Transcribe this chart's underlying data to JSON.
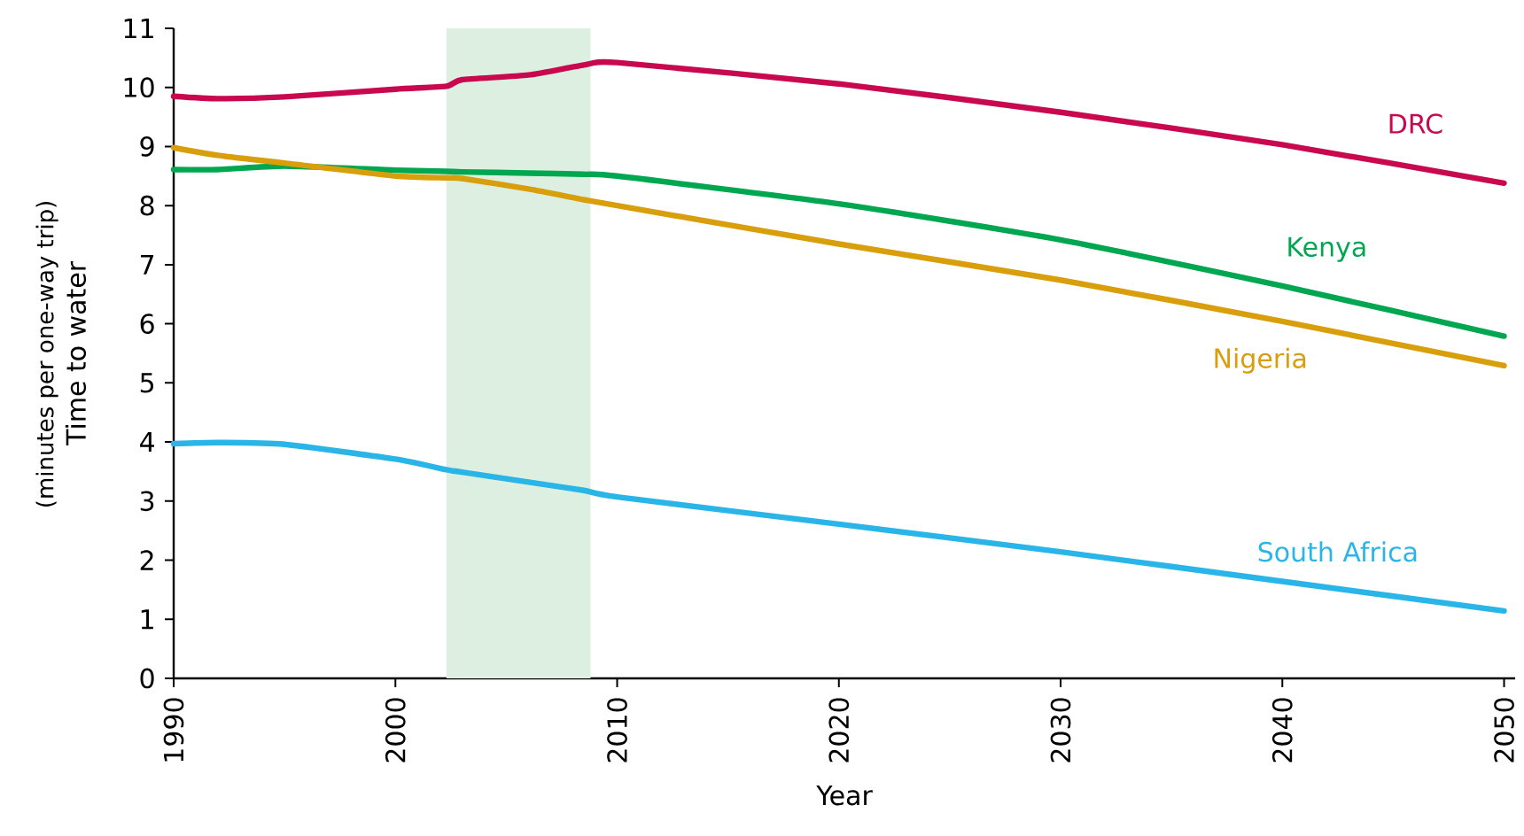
{
  "chart_data": {
    "type": "line",
    "xlabel": "Year",
    "ylabel": "Time to water",
    "annotations": [
      "(minutes per one-way trip)"
    ],
    "xlim": [
      1990,
      2050.5
    ],
    "xticks": [
      1990,
      2000,
      2010,
      2020,
      2030,
      2040,
      2050
    ],
    "ylim": [
      0,
      11
    ],
    "yticks": [
      0,
      1,
      2,
      3,
      4,
      5,
      6,
      7,
      8,
      9,
      10,
      11
    ],
    "x": [
      1990,
      1992,
      1995,
      2000,
      2002.3,
      2003,
      2006,
      2008.5,
      2010,
      2020,
      2030,
      2040,
      2050
    ],
    "bands": [
      {
        "axis": "x",
        "from": 2002.3,
        "to": 2008.8,
        "color": "#dcefe0"
      }
    ],
    "series": [
      {
        "name": "DRC",
        "color": "#c8094f",
        "values": [
          9.85,
          9.81,
          9.84,
          9.97,
          10.02,
          10.13,
          10.21,
          10.38,
          10.42,
          10.06,
          9.58,
          9.03,
          8.38
        ]
      },
      {
        "name": "Kenya",
        "color": "#00a650",
        "values": [
          8.61,
          8.61,
          8.67,
          8.6,
          8.58,
          8.57,
          8.55,
          8.53,
          8.5,
          8.03,
          7.42,
          6.64,
          5.79
        ]
      },
      {
        "name": "Nigeria",
        "color": "#d99e0b",
        "values": [
          8.98,
          8.85,
          8.72,
          8.5,
          8.47,
          8.46,
          8.28,
          8.1,
          8.0,
          7.35,
          6.74,
          6.04,
          5.29
        ]
      },
      {
        "name": "South Africa",
        "color": "#29b5e8",
        "values": [
          3.97,
          3.99,
          3.96,
          3.71,
          3.53,
          3.49,
          3.32,
          3.18,
          3.07,
          2.61,
          2.14,
          1.64,
          1.14
        ]
      }
    ]
  }
}
